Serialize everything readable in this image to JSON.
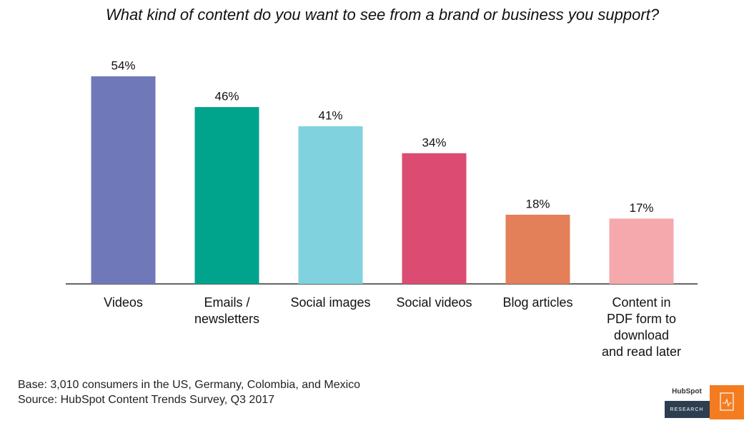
{
  "chart_data": {
    "type": "bar",
    "title": "What kind of content do you want to see from a brand or business you support?",
    "categories": [
      "Videos",
      "Emails /\nnewsletters",
      "Social images",
      "Social videos",
      "Blog articles",
      "Content in\nPDF form to\ndownload\nand read later"
    ],
    "values": [
      54,
      46,
      41,
      34,
      18,
      17
    ],
    "value_labels": [
      "54%",
      "46%",
      "41%",
      "34%",
      "18%",
      "17%"
    ],
    "colors": [
      "#6f79b9",
      "#00a38c",
      "#80d3de",
      "#dc4c72",
      "#e3805a",
      "#f5a9ad"
    ],
    "notes": [
      "Base: 3,010 consumers in the US, Germany, Colombia, and Mexico",
      "Source: HubSpot Content Trends Survey, Q3 2017"
    ],
    "logo": {
      "brand": "HubSpot",
      "label": "RESEARCH"
    }
  }
}
